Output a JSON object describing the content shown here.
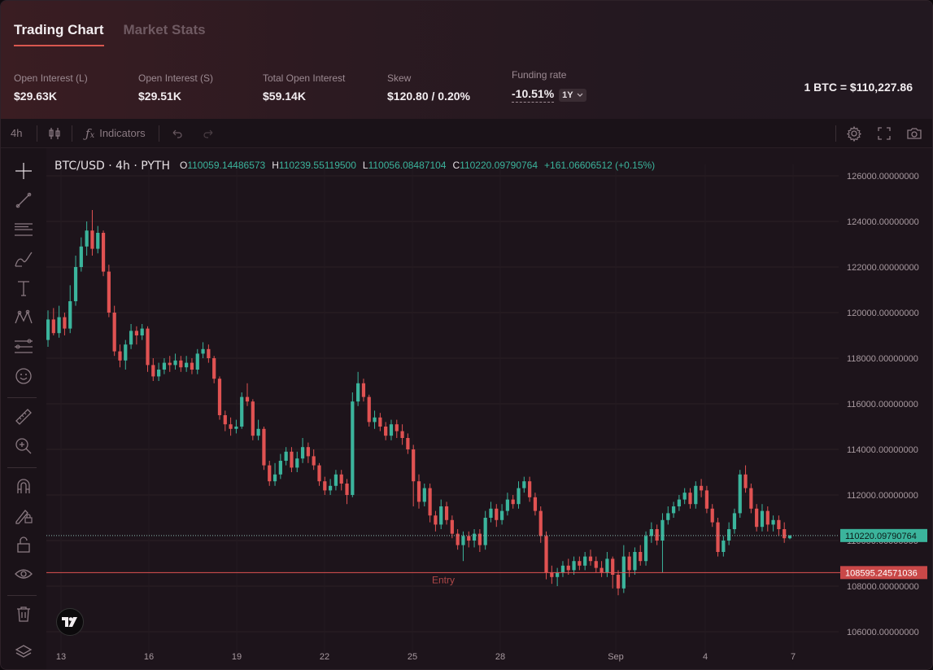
{
  "tabs": [
    "Trading Chart",
    "Market Stats"
  ],
  "stats": [
    {
      "label": "Open Interest (L)",
      "value": "$29.63K"
    },
    {
      "label": "Open Interest (S)",
      "value": "$29.51K"
    },
    {
      "label": "Total Open Interest",
      "value": "$59.14K"
    },
    {
      "label": "Skew",
      "value": "$120.80 / 0.20%"
    }
  ],
  "funding": {
    "label": "Funding rate",
    "value": "-10.51%",
    "period": "1Y"
  },
  "btc_price": "1 BTC = $110,227.86",
  "toolbar": {
    "interval": "4h",
    "indicators": "Indicators"
  },
  "legend": {
    "symbol": "BTC/USD · 4h · PYTH",
    "o_key": "O",
    "o": "110059.14486573",
    "h_key": "H",
    "h": "110239.55119500",
    "l_key": "L",
    "l": "110056.08487104",
    "c_key": "C",
    "c": "110220.09790764",
    "change": "+161.06606512 (+0.15%)"
  },
  "icons": {
    "left_tools": [
      "crosshair-icon",
      "trend-line-icon",
      "fib-icon",
      "brush-icon",
      "text-icon",
      "pattern-icon",
      "forecast-icon",
      "emoji-icon",
      "ruler-icon",
      "zoom-in-icon",
      "magnet-icon",
      "lock-drawing-icon",
      "unlock-icon",
      "eye-icon",
      "trash-icon",
      "layers-icon"
    ]
  },
  "colors": {
    "up": "#3bb49c",
    "down": "#e05252",
    "entry": "#e05252",
    "accent": "#d9574f"
  },
  "chart_data": {
    "type": "candlestick",
    "symbol": "BTC/USD",
    "interval": "4h",
    "ylim": [
      105500,
      126500
    ],
    "y_ticks": [
      "126000.00000000",
      "124000.00000000",
      "122000.00000000",
      "120000.00000000",
      "118000.00000000",
      "116000.00000000",
      "114000.00000000",
      "112000.00000000",
      "110000.00000000",
      "108000.00000000",
      "106000.00000000"
    ],
    "x_ticks": [
      "13",
      "16",
      "19",
      "22",
      "25",
      "28",
      "Sep",
      "4",
      "7"
    ],
    "current_price": {
      "value": 110220.09790764,
      "label": "110220.09790764"
    },
    "entry": {
      "value": 108595.24571036,
      "label": "108595.24571036",
      "text": "Entry"
    },
    "candles": [
      [
        118800,
        119700,
        118500,
        120100
      ],
      [
        119700,
        119100,
        119000,
        120200
      ],
      [
        119100,
        119800,
        118900,
        120300
      ],
      [
        119800,
        119300,
        119000,
        120000
      ],
      [
        119300,
        120500,
        119100,
        121200
      ],
      [
        120500,
        122000,
        120300,
        122500
      ],
      [
        122000,
        122900,
        121800,
        123300
      ],
      [
        122900,
        123600,
        122500,
        124000
      ],
      [
        123600,
        122800,
        122500,
        124500
      ],
      [
        122800,
        123500,
        122600,
        123800
      ],
      [
        123500,
        121800,
        121600,
        123600
      ],
      [
        121800,
        120000,
        119800,
        122100
      ],
      [
        120000,
        118300,
        118100,
        120300
      ],
      [
        118300,
        117900,
        117600,
        118600
      ],
      [
        117900,
        118600,
        117500,
        118800
      ],
      [
        118600,
        119200,
        118400,
        119500
      ],
      [
        119200,
        119000,
        118600,
        119400
      ],
      [
        119000,
        119300,
        118800,
        119500
      ],
      [
        119300,
        117700,
        117400,
        119400
      ],
      [
        117700,
        117200,
        117000,
        118000
      ],
      [
        117200,
        117500,
        117000,
        117800
      ],
      [
        117500,
        117800,
        117300,
        118000
      ],
      [
        117800,
        117700,
        117400,
        118100
      ],
      [
        117700,
        117900,
        117500,
        118200
      ],
      [
        117900,
        117600,
        117400,
        118100
      ],
      [
        117600,
        117800,
        117400,
        118100
      ],
      [
        117800,
        117500,
        117300,
        118000
      ],
      [
        117500,
        118200,
        117300,
        118400
      ],
      [
        118200,
        118400,
        118000,
        118700
      ],
      [
        118400,
        118000,
        117800,
        118600
      ],
      [
        118000,
        117100,
        116900,
        118100
      ],
      [
        117100,
        115500,
        115300,
        117200
      ],
      [
        115500,
        115100,
        114800,
        115700
      ],
      [
        115100,
        114900,
        114600,
        115400
      ],
      [
        114900,
        115000,
        114700,
        115300
      ],
      [
        115000,
        116300,
        114900,
        116500
      ],
      [
        116300,
        116100,
        115900,
        116900
      ],
      [
        116100,
        114600,
        114400,
        116200
      ],
      [
        114600,
        114900,
        114400,
        115300
      ],
      [
        114900,
        113300,
        113100,
        115000
      ],
      [
        113300,
        112600,
        112400,
        113500
      ],
      [
        112600,
        112900,
        112400,
        113400
      ],
      [
        112900,
        113500,
        112700,
        113800
      ],
      [
        113500,
        113900,
        113300,
        114100
      ],
      [
        113900,
        113200,
        113000,
        114100
      ],
      [
        113200,
        113600,
        113000,
        113900
      ],
      [
        113600,
        114100,
        113400,
        114500
      ],
      [
        114100,
        113700,
        113400,
        114300
      ],
      [
        113700,
        113300,
        113100,
        114000
      ],
      [
        113300,
        112600,
        112400,
        113400
      ],
      [
        112600,
        112200,
        112000,
        112800
      ],
      [
        112200,
        112400,
        112000,
        112700
      ],
      [
        112400,
        112900,
        112200,
        113100
      ],
      [
        112900,
        112500,
        112200,
        113100
      ],
      [
        112500,
        112000,
        111600,
        112700
      ],
      [
        112000,
        116100,
        111900,
        116500
      ],
      [
        116100,
        116900,
        115900,
        117400
      ],
      [
        116900,
        116300,
        116100,
        117100
      ],
      [
        116300,
        115200,
        115000,
        116400
      ],
      [
        115200,
        115400,
        114900,
        115700
      ],
      [
        115400,
        115000,
        114800,
        115600
      ],
      [
        115000,
        114600,
        114400,
        115200
      ],
      [
        114600,
        115100,
        114400,
        115300
      ],
      [
        115100,
        114800,
        114500,
        115300
      ],
      [
        114800,
        114500,
        114200,
        115100
      ],
      [
        114500,
        114000,
        113800,
        114700
      ],
      [
        114000,
        112600,
        111500,
        114200
      ],
      [
        112600,
        111700,
        111400,
        112900
      ],
      [
        111700,
        112300,
        111500,
        112500
      ],
      [
        112300,
        111100,
        110800,
        112500
      ],
      [
        111100,
        110700,
        110400,
        111300
      ],
      [
        110700,
        111500,
        110500,
        111800
      ],
      [
        111500,
        110900,
        110700,
        111700
      ],
      [
        110900,
        110300,
        110100,
        111100
      ],
      [
        110300,
        109800,
        109600,
        110500
      ],
      [
        109800,
        110200,
        109100,
        110400
      ],
      [
        110200,
        110000,
        109700,
        110400
      ],
      [
        110000,
        110300,
        109700,
        110500
      ],
      [
        110300,
        109800,
        109500,
        110500
      ],
      [
        109800,
        111000,
        109600,
        111300
      ],
      [
        111000,
        111400,
        110800,
        111700
      ],
      [
        111400,
        110900,
        110600,
        111600
      ],
      [
        110900,
        111300,
        110700,
        111600
      ],
      [
        111300,
        111800,
        111100,
        112100
      ],
      [
        111800,
        111600,
        111400,
        112000
      ],
      [
        111600,
        112300,
        111400,
        112600
      ],
      [
        112300,
        112600,
        112100,
        112800
      ],
      [
        112600,
        111900,
        111700,
        112800
      ],
      [
        111900,
        111300,
        111100,
        112100
      ],
      [
        111300,
        110200,
        109900,
        111500
      ],
      [
        110200,
        108600,
        108300,
        110400
      ],
      [
        108600,
        108400,
        108100,
        108900
      ],
      [
        108400,
        108600,
        108000,
        108800
      ],
      [
        108600,
        108900,
        108400,
        109100
      ],
      [
        108900,
        108700,
        108500,
        109200
      ],
      [
        108700,
        109100,
        108500,
        109300
      ],
      [
        109100,
        108900,
        108700,
        109300
      ],
      [
        108900,
        109300,
        108700,
        109500
      ],
      [
        109300,
        109100,
        108900,
        109600
      ],
      [
        109100,
        108800,
        108600,
        109300
      ],
      [
        108800,
        108600,
        108400,
        109100
      ],
      [
        108600,
        109200,
        108400,
        109500
      ],
      [
        109200,
        108500,
        107900,
        109300
      ],
      [
        108500,
        107900,
        107600,
        108700
      ],
      [
        107900,
        109300,
        107700,
        109800
      ],
      [
        109300,
        108700,
        108400,
        109500
      ],
      [
        108700,
        109500,
        108500,
        109700
      ],
      [
        109500,
        109100,
        108900,
        109800
      ],
      [
        109100,
        110200,
        108900,
        110400
      ],
      [
        110200,
        110500,
        109900,
        110800
      ],
      [
        110500,
        110000,
        109800,
        110700
      ],
      [
        110000,
        110900,
        108600,
        111200
      ],
      [
        110900,
        111200,
        110700,
        111500
      ],
      [
        111200,
        111500,
        111000,
        111700
      ],
      [
        111500,
        111800,
        111300,
        112000
      ],
      [
        111800,
        112100,
        111600,
        112300
      ],
      [
        112100,
        111600,
        111400,
        112300
      ],
      [
        111600,
        112400,
        111400,
        112600
      ],
      [
        112400,
        112200,
        111900,
        112700
      ],
      [
        112200,
        111400,
        111200,
        112400
      ],
      [
        111400,
        110800,
        110600,
        111600
      ],
      [
        110800,
        109500,
        109300,
        111000
      ],
      [
        109500,
        110000,
        109300,
        110200
      ],
      [
        110000,
        110500,
        109800,
        110800
      ],
      [
        110500,
        111200,
        110300,
        111400
      ],
      [
        111200,
        112900,
        111000,
        113100
      ],
      [
        112900,
        112300,
        112100,
        113300
      ],
      [
        112300,
        111400,
        111200,
        112500
      ],
      [
        111400,
        110600,
        110400,
        111600
      ],
      [
        110600,
        111300,
        110400,
        111600
      ],
      [
        111300,
        110700,
        110400,
        111500
      ],
      [
        110700,
        110900,
        110400,
        111100
      ],
      [
        110900,
        110500,
        110200,
        111100
      ],
      [
        110500,
        110100,
        109900,
        110800
      ],
      [
        110100,
        110220,
        110056,
        110240
      ]
    ]
  }
}
